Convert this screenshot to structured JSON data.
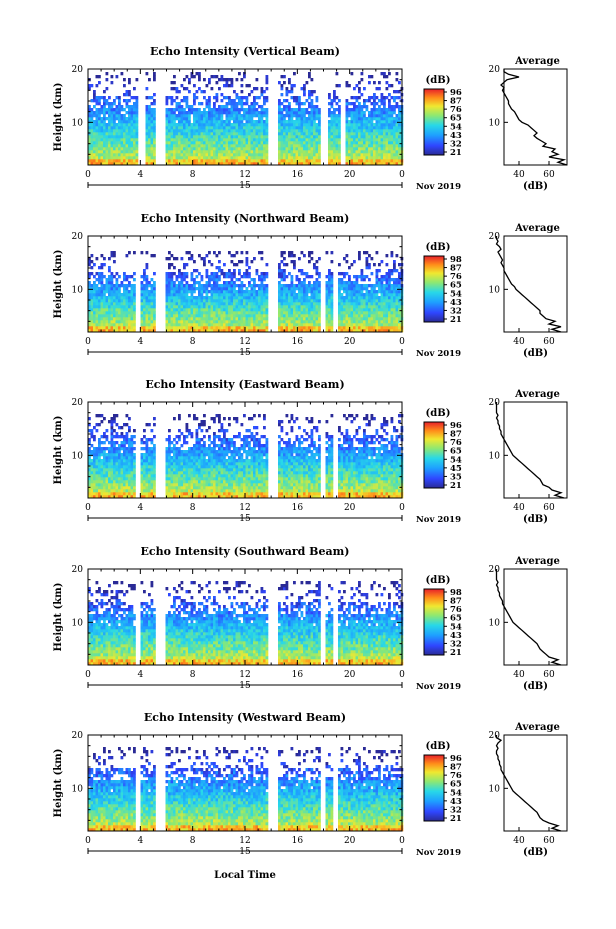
{
  "figure": {
    "xlabel": "Local Time",
    "date_label": "Nov 2019",
    "day_label": "15",
    "avg_title": "Average",
    "avg_xlabel": "(dB)",
    "colorbar_unit": "(dB)",
    "ylabel": "Height (km)"
  },
  "chart_data": [
    {
      "type": "heatmap",
      "title": "Echo Intensity (Vertical Beam)",
      "xlabel": "Local Time",
      "ylabel": "Height (km)",
      "xlim": [
        0,
        24
      ],
      "ylim": [
        2,
        20
      ],
      "xticks": [
        "0",
        "4",
        "8",
        "12",
        "16",
        "20",
        "0"
      ],
      "yticks": [
        "10",
        "20"
      ],
      "colorbar": {
        "label": "(dB)",
        "ticks": [
          "96",
          "87",
          "76",
          "65",
          "54",
          "43",
          "32",
          "21"
        ]
      },
      "data_gaps_hours": [
        [
          3.8,
          4.3
        ],
        [
          5.2,
          5.9
        ],
        [
          13.8,
          14.6
        ],
        [
          17.8,
          18.3
        ],
        [
          19.3,
          19.6
        ]
      ],
      "echo_top_km": 19.5,
      "average_profile": {
        "title": "Average",
        "xlabel": "(dB)",
        "xticks": [
          "40",
          "60"
        ],
        "yticks": [
          "10",
          "20"
        ],
        "height_km": [
          2,
          2.5,
          3,
          3.5,
          4,
          4.5,
          5,
          5.5,
          6,
          6.5,
          7,
          7.5,
          8,
          8.5,
          9,
          9.5,
          10,
          10.5,
          11,
          11.5,
          12,
          12.5,
          13,
          13.5,
          14,
          14.5,
          15,
          15.5,
          16,
          16.5,
          17,
          17.5,
          18,
          18.5,
          19,
          19.5,
          20
        ],
        "intensity_db": [
          72,
          66,
          70,
          60,
          66,
          62,
          64,
          56,
          58,
          55,
          52,
          50,
          52,
          50,
          48,
          46,
          42,
          40,
          39,
          38,
          37,
          35,
          34,
          33,
          33,
          32,
          31,
          30,
          29,
          30,
          28,
          30,
          32,
          40,
          33,
          30,
          30
        ]
      }
    },
    {
      "type": "heatmap",
      "title": "Echo Intensity (Northward Beam)",
      "xlabel": "Local Time",
      "ylabel": "Height (km)",
      "xlim": [
        0,
        24
      ],
      "ylim": [
        2,
        20
      ],
      "xticks": [
        "0",
        "4",
        "8",
        "12",
        "16",
        "20",
        "0"
      ],
      "yticks": [
        "10",
        "20"
      ],
      "colorbar": {
        "label": "(dB)",
        "ticks": [
          "98",
          "87",
          "76",
          "65",
          "54",
          "43",
          "32",
          "21"
        ]
      },
      "data_gaps_hours": [
        [
          3.6,
          4.1
        ],
        [
          5.2,
          5.9
        ],
        [
          13.8,
          14.6
        ],
        [
          17.7,
          18.1
        ],
        [
          18.8,
          19.2
        ]
      ],
      "echo_top_km": 17,
      "average_profile": {
        "title": "Average",
        "xlabel": "(dB)",
        "xticks": [
          "40",
          "60"
        ],
        "yticks": [
          "10",
          "20"
        ],
        "height_km": [
          2,
          2.5,
          3,
          3.5,
          4,
          4.5,
          5,
          5.5,
          6,
          6.5,
          7,
          7.5,
          8,
          8.5,
          9,
          9.5,
          10,
          10.5,
          11,
          11.5,
          12,
          12.5,
          13,
          13.5,
          14,
          14.5,
          15,
          15.5,
          16,
          16.5,
          17,
          17.5,
          18,
          18.5,
          19,
          19.5,
          20
        ],
        "intensity_db": [
          68,
          62,
          68,
          60,
          64,
          58,
          56,
          54,
          54,
          52,
          50,
          48,
          46,
          44,
          42,
          40,
          38,
          37,
          35,
          34,
          33,
          32,
          31,
          30,
          30,
          29,
          28,
          29,
          28,
          27,
          26,
          28,
          27,
          25,
          26,
          25,
          25
        ]
      }
    },
    {
      "type": "heatmap",
      "title": "Echo Intensity (Eastward Beam)",
      "xlabel": "Local Time",
      "ylabel": "Height (km)",
      "xlim": [
        0,
        24
      ],
      "ylim": [
        2,
        20
      ],
      "xticks": [
        "0",
        "4",
        "8",
        "12",
        "16",
        "20",
        "0"
      ],
      "yticks": [
        "10",
        "20"
      ],
      "colorbar": {
        "label": "(dB)",
        "ticks": [
          "96",
          "87",
          "76",
          "65",
          "54",
          "45",
          "35",
          "21"
        ]
      },
      "data_gaps_hours": [
        [
          3.6,
          4.1
        ],
        [
          5.2,
          5.9
        ],
        [
          13.8,
          14.6
        ],
        [
          17.7,
          18.1
        ],
        [
          18.8,
          19.2
        ]
      ],
      "echo_top_km": 18,
      "average_profile": {
        "title": "Average",
        "xlabel": "(dB)",
        "xticks": [
          "40",
          "60"
        ],
        "yticks": [
          "10",
          "20"
        ],
        "height_km": [
          2,
          2.5,
          3,
          3.5,
          4,
          4.5,
          5,
          5.5,
          6,
          6.5,
          7,
          7.5,
          8,
          8.5,
          9,
          9.5,
          10,
          10.5,
          11,
          11.5,
          12,
          12.5,
          13,
          13.5,
          14,
          14.5,
          15,
          15.5,
          16,
          16.5,
          17,
          17.5,
          18,
          18.5,
          19,
          19.5,
          20
        ],
        "intensity_db": [
          70,
          64,
          68,
          62,
          60,
          56,
          55,
          54,
          52,
          50,
          48,
          46,
          44,
          42,
          40,
          38,
          36,
          35,
          34,
          33,
          32,
          31,
          30,
          29,
          28,
          28,
          27,
          27,
          26,
          26,
          25,
          26,
          25,
          25,
          25,
          25,
          25
        ]
      }
    },
    {
      "type": "heatmap",
      "title": "Echo Intensity (Southward Beam)",
      "xlabel": "Local Time",
      "ylabel": "Height (km)",
      "xlim": [
        0,
        24
      ],
      "ylim": [
        2,
        20
      ],
      "xticks": [
        "0",
        "4",
        "8",
        "12",
        "16",
        "20",
        "0"
      ],
      "yticks": [
        "10",
        "20"
      ],
      "colorbar": {
        "label": "(dB)",
        "ticks": [
          "98",
          "87",
          "76",
          "65",
          "54",
          "43",
          "32",
          "21"
        ]
      },
      "data_gaps_hours": [
        [
          3.6,
          4.1
        ],
        [
          5.2,
          5.9
        ],
        [
          13.8,
          14.6
        ],
        [
          17.7,
          18.1
        ],
        [
          18.8,
          19.2
        ]
      ],
      "echo_top_km": 18,
      "average_profile": {
        "title": "Average",
        "xlabel": "(dB)",
        "xticks": [
          "40",
          "60"
        ],
        "yticks": [
          "10",
          "20"
        ],
        "height_km": [
          2,
          2.5,
          3,
          3.5,
          4,
          4.5,
          5,
          5.5,
          6,
          6.5,
          7,
          7.5,
          8,
          8.5,
          9,
          9.5,
          10,
          10.5,
          11,
          11.5,
          12,
          12.5,
          13,
          13.5,
          14,
          14.5,
          15,
          15.5,
          16,
          16.5,
          17,
          17.5,
          18,
          18.5,
          19,
          19.5,
          20
        ],
        "intensity_db": [
          68,
          62,
          66,
          60,
          58,
          56,
          54,
          53,
          52,
          50,
          48,
          46,
          44,
          42,
          40,
          38,
          36,
          35,
          34,
          33,
          32,
          31,
          30,
          29,
          29,
          28,
          27,
          27,
          26,
          26,
          25,
          26,
          25,
          25,
          25,
          25,
          25
        ]
      }
    },
    {
      "type": "heatmap",
      "title": "Echo Intensity (Westward Beam)",
      "xlabel": "Local Time",
      "ylabel": "Height (km)",
      "xlim": [
        0,
        24
      ],
      "ylim": [
        2,
        20
      ],
      "xticks": [
        "0",
        "4",
        "8",
        "12",
        "16",
        "20",
        "0"
      ],
      "yticks": [
        "10",
        "20"
      ],
      "colorbar": {
        "label": "(dB)",
        "ticks": [
          "96",
          "87",
          "76",
          "65",
          "54",
          "43",
          "32",
          "21"
        ]
      },
      "data_gaps_hours": [
        [
          3.6,
          4.1
        ],
        [
          5.2,
          5.9
        ],
        [
          13.8,
          14.6
        ],
        [
          17.7,
          18.1
        ],
        [
          18.8,
          19.2
        ]
      ],
      "echo_top_km": 18,
      "average_profile": {
        "title": "Average",
        "xlabel": "(dB)",
        "xticks": [
          "40",
          "60"
        ],
        "yticks": [
          "10",
          "20"
        ],
        "height_km": [
          2,
          2.5,
          3,
          3.5,
          4,
          4.5,
          5,
          5.5,
          6,
          6.5,
          7,
          7.5,
          8,
          8.5,
          9,
          9.5,
          10,
          10.5,
          11,
          11.5,
          12,
          12.5,
          13,
          13.5,
          14,
          14.5,
          15,
          15.5,
          16,
          16.5,
          17,
          17.5,
          18,
          18.5,
          19,
          19.5,
          20
        ],
        "intensity_db": [
          68,
          62,
          66,
          60,
          56,
          54,
          53,
          52,
          50,
          48,
          46,
          44,
          42,
          40,
          38,
          36,
          35,
          34,
          33,
          32,
          31,
          30,
          29,
          28,
          28,
          27,
          27,
          26,
          26,
          25,
          25,
          26,
          25,
          26,
          28,
          25,
          25
        ]
      }
    }
  ]
}
